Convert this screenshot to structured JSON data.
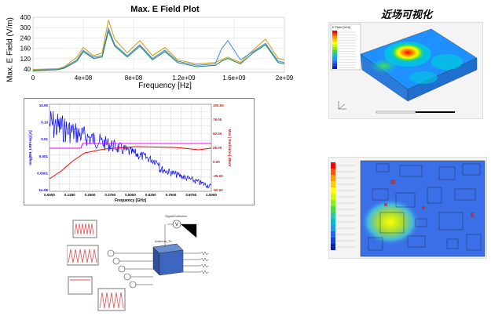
{
  "chart_data": [
    {
      "type": "line",
      "title": "Max. E Field Plot",
      "xlabel": "Frequency [Hz]",
      "ylabel": "Max. E Field (V/m)",
      "xticks": [
        "0",
        "4e+08",
        "8e+08",
        "1.2e+09",
        "1.6e+09",
        "2e+09"
      ],
      "yticks": [
        "40",
        "120",
        "160",
        "240",
        "300",
        "400"
      ],
      "xlim": [
        0,
        2000000000
      ],
      "ylim": [
        0,
        400
      ],
      "grid": true,
      "series": [
        {
          "color": "#d4a017",
          "x": [
            0,
            200000000,
            250000000,
            350000000,
            400000000,
            480000000,
            550000000,
            600000000,
            650000000,
            750000000,
            850000000,
            950000000,
            1050000000,
            1150000000,
            1300000000,
            1450000000,
            1500000000,
            1550000000,
            1650000000,
            1750000000,
            1850000000,
            1950000000,
            2000000000
          ],
          "y": [
            20,
            25,
            40,
            110,
            180,
            120,
            140,
            380,
            240,
            140,
            230,
            120,
            180,
            90,
            60,
            70,
            90,
            110,
            70,
            160,
            240,
            100,
            90
          ]
        },
        {
          "color": "#4a90e2",
          "x": [
            0,
            200000000,
            250000000,
            350000000,
            400000000,
            480000000,
            550000000,
            600000000,
            650000000,
            750000000,
            850000000,
            950000000,
            1050000000,
            1150000000,
            1300000000,
            1450000000,
            1500000000,
            1550000000,
            1650000000,
            1750000000,
            1850000000,
            1950000000,
            2000000000
          ],
          "y": [
            15,
            20,
            35,
            90,
            160,
            110,
            120,
            320,
            200,
            120,
            200,
            100,
            160,
            80,
            50,
            60,
            170,
            230,
            90,
            150,
            210,
            80,
            70
          ]
        },
        {
          "color": "#2e8b57",
          "x": [
            0,
            200000000,
            250000000,
            350000000,
            400000000,
            480000000,
            550000000,
            600000000,
            650000000,
            750000000,
            850000000,
            950000000,
            1050000000,
            1150000000,
            1300000000,
            1450000000,
            1500000000,
            1550000000,
            1650000000,
            1750000000,
            1850000000,
            1950000000,
            2000000000
          ],
          "y": [
            10,
            18,
            30,
            80,
            150,
            100,
            110,
            300,
            190,
            110,
            190,
            90,
            150,
            70,
            40,
            50,
            80,
            100,
            60,
            140,
            200,
            70,
            60
          ]
        }
      ]
    },
    {
      "type": "line",
      "title": "",
      "xlabel": "Frequency [GHz]",
      "ylabel": "mag(EH_LRFreq) [A]",
      "y2label": "Max [ Radiation] dBuV",
      "xticks": [
        "0.0000",
        "0.1250",
        "0.2500",
        "0.3750",
        "0.5000",
        "0.6250",
        "0.7500",
        "0.8750",
        "1.0000"
      ],
      "yticks": [
        "10.00",
        "0.10",
        "0.01",
        "0.001",
        "0.0001",
        "1e-06"
      ],
      "y2ticks": [
        "100.00",
        "75.00",
        "50.00",
        "25.00",
        "0.00",
        "-25.00",
        "-50.00"
      ],
      "grid": true,
      "series": [
        {
          "color": "#0000ff",
          "note_values": "decaying"
        },
        {
          "color": "#ff00ff"
        },
        {
          "color": "#ff0000"
        }
      ]
    }
  ],
  "nearfield": {
    "title": "近场可视化",
    "legend1_header": "E Field [V/m]"
  },
  "schematic": {
    "source_label": "SignalVoltmeter",
    "box_label": "Antenna_7b"
  }
}
